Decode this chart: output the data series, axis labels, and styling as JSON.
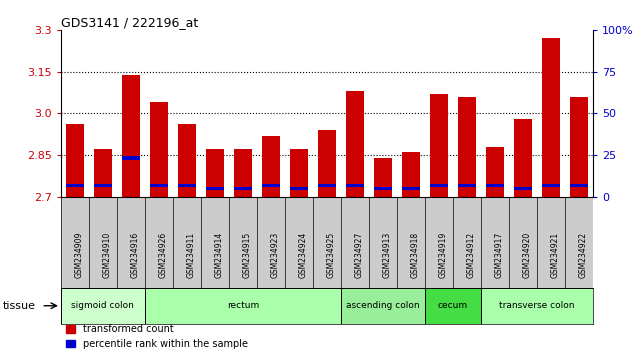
{
  "title": "GDS3141 / 222196_at",
  "samples": [
    "GSM234909",
    "GSM234910",
    "GSM234916",
    "GSM234926",
    "GSM234911",
    "GSM234914",
    "GSM234915",
    "GSM234923",
    "GSM234924",
    "GSM234925",
    "GSM234927",
    "GSM234913",
    "GSM234918",
    "GSM234919",
    "GSM234912",
    "GSM234917",
    "GSM234920",
    "GSM234921",
    "GSM234922"
  ],
  "red_values": [
    2.96,
    2.87,
    3.14,
    3.04,
    2.96,
    2.87,
    2.87,
    2.92,
    2.87,
    2.94,
    3.08,
    2.84,
    2.86,
    3.07,
    3.06,
    2.88,
    2.98,
    3.27,
    3.06
  ],
  "blue_values": [
    2.74,
    2.74,
    2.84,
    2.74,
    2.74,
    2.73,
    2.73,
    2.74,
    2.73,
    2.74,
    2.74,
    2.73,
    2.73,
    2.74,
    2.74,
    2.74,
    2.73,
    2.74,
    2.74
  ],
  "y_min": 2.7,
  "y_max": 3.3,
  "y_ticks_left": [
    2.7,
    2.85,
    3.0,
    3.15,
    3.3
  ],
  "y_ticks_right_vals": [
    "0",
    "25",
    "50",
    "75",
    "100%"
  ],
  "y_ticks_right_pos": [
    2.7,
    2.85,
    3.0,
    3.15,
    3.3
  ],
  "grid_lines": [
    2.85,
    3.0,
    3.15
  ],
  "tissue_groups": [
    {
      "label": "sigmoid colon",
      "start": 0,
      "end": 3,
      "color": "#ccffcc"
    },
    {
      "label": "rectum",
      "start": 3,
      "end": 10,
      "color": "#aaffaa"
    },
    {
      "label": "ascending colon",
      "start": 10,
      "end": 13,
      "color": "#99ee99"
    },
    {
      "label": "cecum",
      "start": 13,
      "end": 15,
      "color": "#44dd44"
    },
    {
      "label": "transverse colon",
      "start": 15,
      "end": 19,
      "color": "#aaffaa"
    }
  ],
  "bar_color": "#cc0000",
  "blue_color": "#0000cc",
  "legend_red": "transformed count",
  "legend_blue": "percentile rank within the sample",
  "tissue_label": "tissue",
  "right_axis_color": "#0000cc",
  "left_axis_color": "#cc0000"
}
